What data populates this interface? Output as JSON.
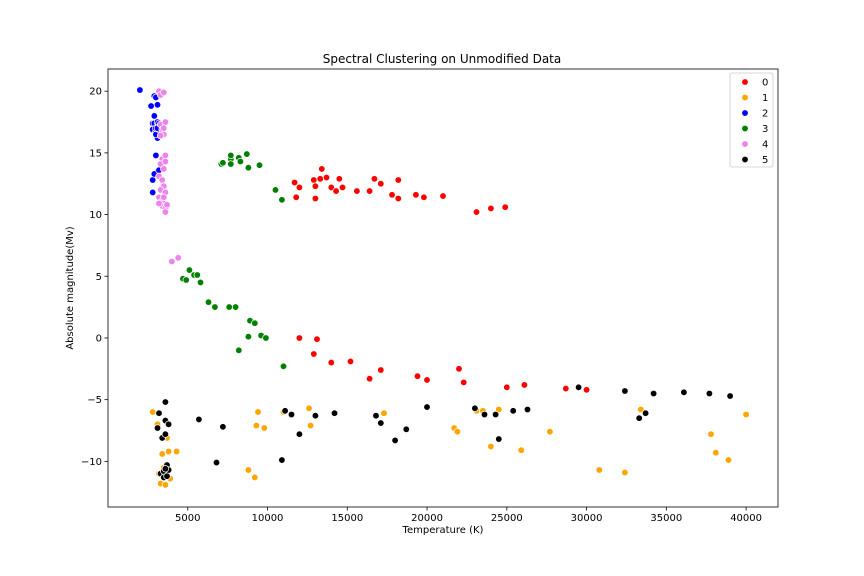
{
  "chart_data": {
    "type": "scatter",
    "title": "Spectral Clustering on Unmodified Data",
    "xlabel": "Temperature (K)",
    "ylabel": "Absolute magnitude(Mv)",
    "xlim": [
      0,
      42000
    ],
    "ylim": [
      -13.7,
      21.8
    ],
    "xticks": [
      5000,
      10000,
      15000,
      20000,
      25000,
      30000,
      35000,
      40000
    ],
    "yticks": [
      -10,
      -5,
      0,
      5,
      10,
      15,
      20
    ],
    "xtick_labels": [
      "5000",
      "10000",
      "15000",
      "20000",
      "25000",
      "30000",
      "35000",
      "40000"
    ],
    "ytick_labels": [
      "−10",
      "−5",
      "0",
      "5",
      "10",
      "15",
      "20"
    ],
    "grid": false,
    "legend_position": "top-right",
    "series": [
      {
        "name": "0",
        "color": "#ff0000",
        "points": [
          [
            11700,
            12.6
          ],
          [
            11800,
            11.4
          ],
          [
            12000,
            12.2
          ],
          [
            12900,
            12.8
          ],
          [
            13000,
            12.3
          ],
          [
            13000,
            11.3
          ],
          [
            13300,
            12.9
          ],
          [
            13400,
            13.7
          ],
          [
            13700,
            13.0
          ],
          [
            14000,
            12.2
          ],
          [
            14300,
            11.9
          ],
          [
            14500,
            12.9
          ],
          [
            14700,
            12.2
          ],
          [
            15600,
            11.9
          ],
          [
            16400,
            11.9
          ],
          [
            16700,
            12.9
          ],
          [
            17100,
            12.5
          ],
          [
            17800,
            11.6
          ],
          [
            18200,
            12.8
          ],
          [
            18200,
            11.3
          ],
          [
            19300,
            11.6
          ],
          [
            19800,
            11.4
          ],
          [
            21000,
            11.5
          ],
          [
            23100,
            10.2
          ],
          [
            24000,
            10.5
          ],
          [
            24900,
            10.6
          ],
          [
            12000,
            0.0
          ],
          [
            12900,
            -1.3
          ],
          [
            13100,
            -0.1
          ],
          [
            14000,
            -2.0
          ],
          [
            15200,
            -1.9
          ],
          [
            16400,
            -3.3
          ],
          [
            17100,
            -2.6
          ],
          [
            19400,
            -3.1
          ],
          [
            20000,
            -3.4
          ],
          [
            22000,
            -2.5
          ],
          [
            22300,
            -3.6
          ],
          [
            25000,
            -4.0
          ],
          [
            26100,
            -3.8
          ],
          [
            28700,
            -4.1
          ],
          [
            30000,
            -4.2
          ]
        ]
      },
      {
        "name": "1",
        "color": "#ffa500",
        "points": [
          [
            2800,
            -6.0
          ],
          [
            3100,
            -7.0
          ],
          [
            3200,
            -11.0
          ],
          [
            3300,
            -11.8
          ],
          [
            3400,
            -9.4
          ],
          [
            3500,
            -10.5
          ],
          [
            3600,
            -11.9
          ],
          [
            3700,
            -8.1
          ],
          [
            3800,
            -9.2
          ],
          [
            3900,
            -11.4
          ],
          [
            4300,
            -9.2
          ],
          [
            8800,
            -10.7
          ],
          [
            9200,
            -11.3
          ],
          [
            9400,
            -6.0
          ],
          [
            9300,
            -7.1
          ],
          [
            9800,
            -7.3
          ],
          [
            11000,
            -6.0
          ],
          [
            12600,
            -5.7
          ],
          [
            12700,
            -7.1
          ],
          [
            17300,
            -6.1
          ],
          [
            21700,
            -7.3
          ],
          [
            21900,
            -7.6
          ],
          [
            23100,
            -5.9
          ],
          [
            23500,
            -5.9
          ],
          [
            24000,
            -8.8
          ],
          [
            24500,
            -5.8
          ],
          [
            25900,
            -9.1
          ],
          [
            27700,
            -7.6
          ],
          [
            30800,
            -10.7
          ],
          [
            32400,
            -10.9
          ],
          [
            33400,
            -5.8
          ],
          [
            37800,
            -7.8
          ],
          [
            38100,
            -9.3
          ],
          [
            38900,
            -9.9
          ],
          [
            40000,
            -6.2
          ]
        ]
      },
      {
        "name": "2",
        "color": "#0000ff",
        "points": [
          [
            2000,
            20.1
          ],
          [
            2700,
            18.8
          ],
          [
            2800,
            17.4
          ],
          [
            2800,
            16.9
          ],
          [
            2800,
            12.8
          ],
          [
            2900,
            19.6
          ],
          [
            2900,
            17.4
          ],
          [
            3000,
            19.5
          ],
          [
            2900,
            18.0
          ],
          [
            3000,
            16.7
          ],
          [
            3100,
            17.5
          ],
          [
            3100,
            16.2
          ],
          [
            3000,
            16.5
          ],
          [
            3000,
            14.8
          ],
          [
            3100,
            13.5
          ],
          [
            2900,
            13.3
          ],
          [
            2800,
            11.8
          ],
          [
            3200,
            16.9
          ],
          [
            3200,
            17.4
          ],
          [
            3100,
            18.9
          ],
          [
            3200,
            13.6
          ],
          [
            3000,
            17.0
          ],
          [
            3100,
            17.0
          ]
        ]
      },
      {
        "name": "3",
        "color": "#008000",
        "points": [
          [
            7100,
            14.1
          ],
          [
            7200,
            14.2
          ],
          [
            7700,
            14.5
          ],
          [
            7700,
            14.8
          ],
          [
            7700,
            14.1
          ],
          [
            8200,
            14.6
          ],
          [
            8300,
            14.3
          ],
          [
            8700,
            14.9
          ],
          [
            8800,
            13.8
          ],
          [
            9500,
            14.0
          ],
          [
            10500,
            12.0
          ],
          [
            10900,
            11.2
          ],
          [
            4700,
            4.8
          ],
          [
            4900,
            4.7
          ],
          [
            5100,
            5.5
          ],
          [
            5400,
            5.1
          ],
          [
            5600,
            5.1
          ],
          [
            5800,
            4.5
          ],
          [
            6300,
            2.9
          ],
          [
            6700,
            2.5
          ],
          [
            7600,
            2.5
          ],
          [
            8000,
            2.5
          ],
          [
            8200,
            -1.0
          ],
          [
            8800,
            0.1
          ],
          [
            8900,
            1.4
          ],
          [
            9200,
            1.2
          ],
          [
            9600,
            0.2
          ],
          [
            9900,
            0.0
          ],
          [
            11000,
            -2.3
          ]
        ]
      },
      {
        "name": "4",
        "color": "#ee82ee",
        "points": [
          [
            3200,
            20.0
          ],
          [
            3300,
            19.7
          ],
          [
            3500,
            19.9
          ],
          [
            3300,
            17.3
          ],
          [
            3400,
            16.9
          ],
          [
            3500,
            16.5
          ],
          [
            3600,
            17.5
          ],
          [
            3300,
            16.4
          ],
          [
            3500,
            17.0
          ],
          [
            3400,
            14.5
          ],
          [
            3600,
            14.8
          ],
          [
            3300,
            14.1
          ],
          [
            3500,
            13.7
          ],
          [
            3600,
            14.3
          ],
          [
            3200,
            13.1
          ],
          [
            3400,
            12.8
          ],
          [
            3500,
            12.3
          ],
          [
            3300,
            12.0
          ],
          [
            3600,
            11.8
          ],
          [
            3200,
            11.4
          ],
          [
            3300,
            11.0
          ],
          [
            3500,
            10.9
          ],
          [
            3400,
            10.7
          ],
          [
            3600,
            10.5
          ],
          [
            3700,
            10.8
          ],
          [
            3600,
            10.2
          ],
          [
            3200,
            10.9
          ],
          [
            3500,
            11.4
          ],
          [
            4000,
            6.2
          ],
          [
            4400,
            6.5
          ]
        ]
      },
      {
        "name": "5",
        "color": "#000000",
        "points": [
          [
            3100,
            -7.3
          ],
          [
            3200,
            -6.1
          ],
          [
            3300,
            -11.0
          ],
          [
            3400,
            -8.1
          ],
          [
            3500,
            -10.8
          ],
          [
            3500,
            -11.3
          ],
          [
            3600,
            -5.2
          ],
          [
            3600,
            -6.7
          ],
          [
            3600,
            -7.8
          ],
          [
            3700,
            -10.3
          ],
          [
            3700,
            -11.2
          ],
          [
            3800,
            -10.7
          ],
          [
            3800,
            -7.0
          ],
          [
            3600,
            -10.6
          ],
          [
            5700,
            -6.6
          ],
          [
            6800,
            -10.1
          ],
          [
            7200,
            -7.2
          ],
          [
            10900,
            -9.9
          ],
          [
            11100,
            -5.9
          ],
          [
            11500,
            -6.2
          ],
          [
            12000,
            -7.8
          ],
          [
            13000,
            -6.3
          ],
          [
            14200,
            -6.1
          ],
          [
            16800,
            -6.3
          ],
          [
            17100,
            -6.9
          ],
          [
            18000,
            -8.3
          ],
          [
            18700,
            -7.4
          ],
          [
            20000,
            -5.6
          ],
          [
            23000,
            -5.7
          ],
          [
            23600,
            -6.2
          ],
          [
            24300,
            -6.2
          ],
          [
            24500,
            -8.2
          ],
          [
            25400,
            -5.9
          ],
          [
            26300,
            -5.8
          ],
          [
            29500,
            -4.0
          ],
          [
            32400,
            -4.3
          ],
          [
            33300,
            -6.5
          ],
          [
            33700,
            -6.1
          ],
          [
            34200,
            -4.5
          ],
          [
            36100,
            -4.4
          ],
          [
            37700,
            -4.5
          ],
          [
            39000,
            -4.7
          ]
        ]
      }
    ]
  }
}
